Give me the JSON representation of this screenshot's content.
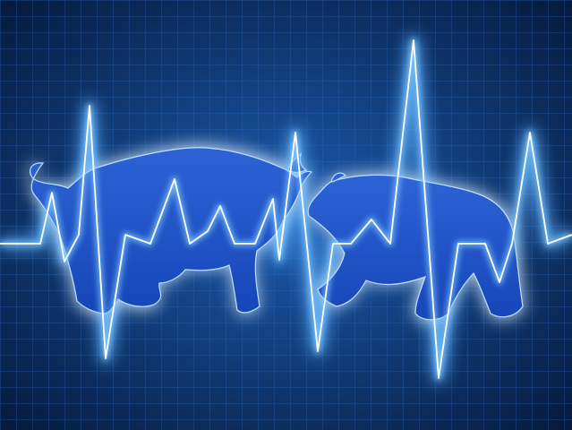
{
  "scene": {
    "subject": "bull-vs-bear-market",
    "colors": {
      "background_center": "#1d5cb0",
      "background_edge": "#061a3d",
      "grid": "#2a6bc2",
      "pulse_core": "#ffffff",
      "pulse_glow": "#5fb4ff",
      "animal_fill": "#1646b8",
      "animal_fill_light": "#2d63d6",
      "animal_glow": "#d8ecff"
    },
    "icons": [
      "bull-silhouette",
      "bear-silhouette",
      "heartbeat-line"
    ]
  }
}
